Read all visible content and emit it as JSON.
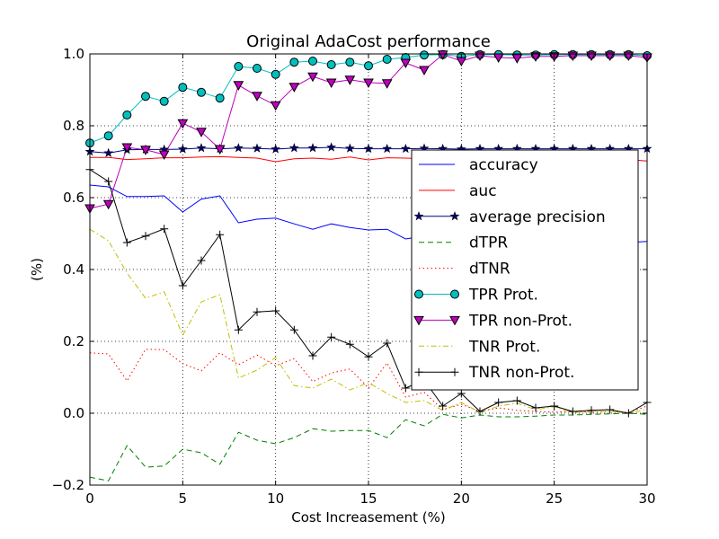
{
  "chart_data": {
    "type": "line",
    "title": "Original AdaCost performance",
    "xlabel": "Cost Increasement (%)",
    "ylabel": "(%)",
    "xlim": [
      0,
      30
    ],
    "ylim": [
      -0.2,
      1.0
    ],
    "xticks": [
      "0",
      "5",
      "10",
      "15",
      "20",
      "25",
      "30"
    ],
    "yticks": [
      "−0.2",
      "0.0",
      "0.2",
      "0.4",
      "0.6",
      "0.8",
      "1.0"
    ],
    "grid": true,
    "legend_position": "right",
    "x": [
      0,
      1,
      2,
      3,
      4,
      5,
      6,
      7,
      8,
      9,
      10,
      11,
      12,
      13,
      14,
      15,
      16,
      17,
      18,
      19,
      20,
      21,
      22,
      23,
      24,
      25,
      26,
      27,
      28,
      29,
      30
    ],
    "series": [
      {
        "name": "accuracy",
        "color": "#0000ff",
        "style": "solid",
        "marker": "none",
        "values": [
          0.635,
          0.63,
          0.603,
          0.603,
          0.605,
          0.56,
          0.596,
          0.605,
          0.53,
          0.54,
          0.543,
          0.527,
          0.512,
          0.527,
          0.517,
          0.51,
          0.512,
          0.485,
          0.493,
          0.49,
          0.495,
          0.492,
          0.49,
          0.488,
          0.487,
          0.487,
          0.485,
          0.483,
          0.482,
          0.475,
          0.478
        ]
      },
      {
        "name": "auc",
        "color": "#ff0000",
        "style": "solid",
        "marker": "none",
        "values": [
          0.712,
          0.712,
          0.706,
          0.708,
          0.711,
          0.711,
          0.713,
          0.714,
          0.712,
          0.71,
          0.7,
          0.708,
          0.71,
          0.707,
          0.713,
          0.705,
          0.711,
          0.71,
          0.708,
          0.708,
          0.706,
          0.707,
          0.706,
          0.706,
          0.707,
          0.707,
          0.707,
          0.706,
          0.707,
          0.706,
          0.702
        ]
      },
      {
        "name": "average precision",
        "color": "#000080",
        "style": "solid",
        "marker": "star",
        "values": [
          0.728,
          0.724,
          0.733,
          0.734,
          0.734,
          0.735,
          0.738,
          0.736,
          0.738,
          0.737,
          0.735,
          0.738,
          0.738,
          0.74,
          0.737,
          0.736,
          0.736,
          0.736,
          0.737,
          0.736,
          0.735,
          0.736,
          0.736,
          0.736,
          0.736,
          0.736,
          0.736,
          0.736,
          0.736,
          0.736,
          0.736
        ]
      },
      {
        "name": "dTPR",
        "color": "#008000",
        "style": "dashed",
        "marker": "none",
        "values": [
          -0.178,
          -0.188,
          -0.09,
          -0.15,
          -0.147,
          -0.1,
          -0.11,
          -0.142,
          -0.053,
          -0.075,
          -0.085,
          -0.068,
          -0.043,
          -0.05,
          -0.048,
          -0.048,
          -0.068,
          -0.018,
          -0.035,
          -0.003,
          -0.013,
          -0.005,
          -0.01,
          -0.01,
          -0.008,
          -0.005,
          -0.005,
          -0.003,
          -0.002,
          0.0,
          -0.003
        ]
      },
      {
        "name": "dTNR",
        "color": "#ff0000",
        "style": "dotted",
        "marker": "none",
        "values": [
          0.168,
          0.165,
          0.09,
          0.178,
          0.177,
          0.138,
          0.118,
          0.168,
          0.135,
          0.162,
          0.132,
          0.152,
          0.088,
          0.112,
          0.123,
          0.07,
          0.14,
          0.045,
          0.058,
          0.01,
          0.025,
          0.005,
          0.015,
          0.008,
          0.005,
          0.003,
          0.005,
          0.003,
          0.005,
          0.002,
          0.02
        ]
      },
      {
        "name": "TPR Prot.",
        "color": "#00bfbf",
        "style": "solid",
        "marker": "circle",
        "values": [
          0.752,
          0.772,
          0.83,
          0.882,
          0.868,
          0.907,
          0.893,
          0.877,
          0.965,
          0.96,
          0.943,
          0.977,
          0.98,
          0.97,
          0.977,
          0.967,
          0.985,
          0.99,
          0.997,
          0.998,
          0.993,
          0.998,
          0.998,
          0.997,
          0.997,
          0.998,
          0.998,
          0.998,
          0.998,
          0.998,
          0.995
        ]
      },
      {
        "name": "TPR non-Prot.",
        "color": "#bf00bf",
        "style": "solid",
        "marker": "triangle-down",
        "values": [
          0.57,
          0.582,
          0.74,
          0.733,
          0.72,
          0.807,
          0.783,
          0.735,
          0.913,
          0.883,
          0.857,
          0.908,
          0.937,
          0.92,
          0.928,
          0.92,
          0.918,
          0.975,
          0.955,
          0.998,
          0.98,
          0.995,
          0.99,
          0.988,
          0.993,
          0.993,
          0.995,
          0.995,
          0.995,
          0.995,
          0.99
        ]
      },
      {
        "name": "TNR Prot.",
        "color": "#bfbf00",
        "style": "dashdot",
        "marker": "none",
        "values": [
          0.512,
          0.48,
          0.39,
          0.32,
          0.338,
          0.217,
          0.31,
          0.33,
          0.098,
          0.12,
          0.155,
          0.077,
          0.07,
          0.095,
          0.065,
          0.085,
          0.055,
          0.03,
          0.035,
          0.008,
          0.03,
          0.002,
          0.02,
          0.028,
          0.01,
          0.018,
          0.002,
          0.005,
          0.005,
          0.0,
          0.01
        ]
      },
      {
        "name": "TNR non-Prot.",
        "color": "#000000",
        "style": "solid",
        "marker": "plus",
        "values": [
          0.678,
          0.645,
          0.475,
          0.493,
          0.513,
          0.355,
          0.425,
          0.497,
          0.232,
          0.282,
          0.285,
          0.232,
          0.16,
          0.212,
          0.192,
          0.157,
          0.195,
          0.07,
          0.092,
          0.02,
          0.055,
          0.005,
          0.03,
          0.035,
          0.015,
          0.02,
          0.005,
          0.008,
          0.01,
          0.0,
          0.03
        ]
      }
    ]
  }
}
